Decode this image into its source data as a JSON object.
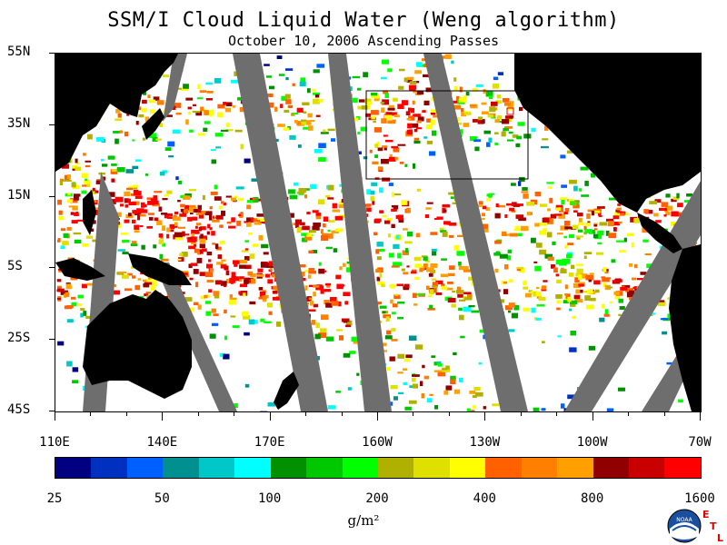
{
  "title": "SSM/I Cloud Liquid Water (Weng algorithm)",
  "subtitle": "October 10, 2006  Ascending Passes",
  "lat_labels": [
    "55N",
    "35N",
    "15N",
    "5S",
    "25S",
    "45S"
  ],
  "lon_labels": [
    "110E",
    "140E",
    "170E",
    "160W",
    "130W",
    "100W",
    "70W"
  ],
  "colorbar": {
    "labels": [
      "25",
      "50",
      "100",
      "200",
      "400",
      "800",
      "1600"
    ],
    "units": "g/m²",
    "colors": [
      "#000080",
      "#0030c0",
      "#0060ff",
      "#009090",
      "#00c8c8",
      "#00ffff",
      "#009000",
      "#00c800",
      "#00ff00",
      "#b0b000",
      "#e0e000",
      "#ffff00",
      "#ff6000",
      "#ff8000",
      "#ffa000",
      "#900000",
      "#c80000",
      "#ff0000"
    ]
  },
  "map": {
    "land_color": "#000000",
    "gap_color": "#6e6e6e",
    "ocean_clear_color": "#ffffff",
    "box_color": "#000000"
  },
  "logos": {
    "noaa": "NOAA",
    "etl": [
      "E",
      "T",
      "L"
    ]
  }
}
